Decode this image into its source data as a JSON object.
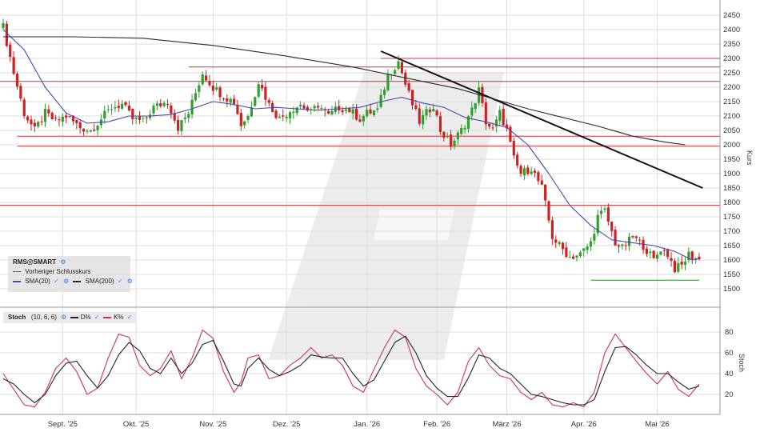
{
  "chart_data": [
    {
      "type": "candlestick",
      "symbol": "RMS@SMART",
      "ylabel": "Kurs",
      "y_ticks": [
        1500,
        1550,
        1600,
        1650,
        1700,
        1750,
        1800,
        1850,
        1900,
        1950,
        2000,
        2050,
        2100,
        2150,
        2200,
        2250,
        2300,
        2350,
        2400,
        2450
      ],
      "ylim": [
        1460,
        2460
      ],
      "x_labels": [
        "Sept. '25",
        "Okt. '25",
        "Nov. '25",
        "Dez. '25",
        "Jan. '26",
        "Feb. '26",
        "März '26",
        "Apr. '26",
        "Mai '26"
      ],
      "x_label_index": [
        17,
        38,
        60,
        81,
        104,
        124,
        144,
        166,
        187
      ],
      "x_count": 200,
      "grid": true,
      "legend": {
        "symbol_label": "RMS@SMART",
        "prev_close_label": "Vorheriger Schlusskurs",
        "sma20_label": "SMA(20)",
        "sma200_label": "SMA(200)",
        "placement": "bottom-left"
      },
      "horizontal_levels": [
        {
          "value": 2300,
          "color": "#cc3333"
        },
        {
          "value": 2270,
          "color": "#cc3333"
        },
        {
          "value": 2220,
          "color": "#cc3333"
        },
        {
          "value": 2030,
          "color": "#cc3333"
        },
        {
          "value": 1995,
          "color": "#cc3333"
        },
        {
          "value": 1790,
          "color": "#cc3333"
        },
        {
          "value": 1530,
          "color": "#2e8b2e"
        }
      ],
      "trendline": {
        "from": [
          108,
          2325
        ],
        "to": [
          200,
          1850
        ]
      },
      "keypoints": [
        [
          0,
          2410
        ],
        [
          3,
          2250
        ],
        [
          6,
          2110
        ],
        [
          9,
          2050
        ],
        [
          12,
          2110
        ],
        [
          15,
          2080
        ],
        [
          18,
          2100
        ],
        [
          22,
          2060
        ],
        [
          25,
          2050
        ],
        [
          28,
          2090
        ],
        [
          31,
          2130
        ],
        [
          34,
          2140
        ],
        [
          37,
          2090
        ],
        [
          40,
          2080
        ],
        [
          43,
          2130
        ],
        [
          47,
          2150
        ],
        [
          50,
          2060
        ],
        [
          53,
          2110
        ],
        [
          57,
          2250
        ],
        [
          60,
          2200
        ],
        [
          63,
          2170
        ],
        [
          66,
          2150
        ],
        [
          68,
          2070
        ],
        [
          70,
          2100
        ],
        [
          73,
          2220
        ],
        [
          76,
          2140
        ],
        [
          79,
          2090
        ],
        [
          82,
          2120
        ],
        [
          85,
          2140
        ],
        [
          88,
          2110
        ],
        [
          90,
          2140
        ],
        [
          93,
          2100
        ],
        [
          96,
          2130
        ],
        [
          99,
          2120
        ],
        [
          102,
          2090
        ],
        [
          104,
          2110
        ],
        [
          107,
          2120
        ],
        [
          110,
          2240
        ],
        [
          113,
          2290
        ],
        [
          115,
          2210
        ],
        [
          117,
          2140
        ],
        [
          119,
          2080
        ],
        [
          121,
          2110
        ],
        [
          123,
          2140
        ],
        [
          125,
          2050
        ],
        [
          128,
          2000
        ],
        [
          131,
          2050
        ],
        [
          134,
          2120
        ],
        [
          136,
          2190
        ],
        [
          138,
          2080
        ],
        [
          140,
          2050
        ],
        [
          142,
          2110
        ],
        [
          144,
          2050
        ],
        [
          146,
          1950
        ],
        [
          148,
          1900
        ],
        [
          151,
          1920
        ],
        [
          154,
          1850
        ],
        [
          157,
          1680
        ],
        [
          159,
          1650
        ],
        [
          162,
          1610
        ],
        [
          165,
          1620
        ],
        [
          168,
          1660
        ],
        [
          170,
          1750
        ],
        [
          172,
          1770
        ],
        [
          175,
          1660
        ],
        [
          177,
          1640
        ],
        [
          180,
          1680
        ],
        [
          183,
          1650
        ],
        [
          186,
          1600
        ],
        [
          188,
          1640
        ],
        [
          190,
          1620
        ],
        [
          192,
          1570
        ],
        [
          194,
          1580
        ],
        [
          196,
          1620
        ],
        [
          199,
          1600
        ]
      ],
      "sma20_keypoints": [
        [
          0,
          2400
        ],
        [
          6,
          2330
        ],
        [
          12,
          2200
        ],
        [
          18,
          2110
        ],
        [
          24,
          2075
        ],
        [
          30,
          2080
        ],
        [
          36,
          2100
        ],
        [
          42,
          2100
        ],
        [
          48,
          2105
        ],
        [
          54,
          2125
        ],
        [
          60,
          2150
        ],
        [
          66,
          2140
        ],
        [
          72,
          2125
        ],
        [
          78,
          2130
        ],
        [
          84,
          2125
        ],
        [
          90,
          2120
        ],
        [
          96,
          2125
        ],
        [
          102,
          2130
        ],
        [
          108,
          2150
        ],
        [
          114,
          2165
        ],
        [
          120,
          2145
        ],
        [
          126,
          2130
        ],
        [
          132,
          2095
        ],
        [
          138,
          2080
        ],
        [
          144,
          2060
        ],
        [
          150,
          2000
        ],
        [
          156,
          1900
        ],
        [
          162,
          1790
        ],
        [
          168,
          1720
        ],
        [
          174,
          1670
        ],
        [
          180,
          1660
        ],
        [
          186,
          1650
        ],
        [
          192,
          1630
        ],
        [
          197,
          1600
        ],
        [
          199,
          1605
        ]
      ],
      "sma200_keypoints": [
        [
          0,
          2375
        ],
        [
          20,
          2375
        ],
        [
          40,
          2370
        ],
        [
          60,
          2345
        ],
        [
          80,
          2310
        ],
        [
          100,
          2270
        ],
        [
          120,
          2220
        ],
        [
          130,
          2195
        ],
        [
          140,
          2160
        ],
        [
          150,
          2125
        ],
        [
          160,
          2095
        ],
        [
          170,
          2065
        ],
        [
          180,
          2030
        ],
        [
          189,
          2010
        ],
        [
          195,
          2000
        ]
      ]
    },
    {
      "type": "line",
      "name": "Stoch",
      "params": "(10, 6, 6)",
      "ylabel": "Stoch",
      "y_ticks": [
        20,
        40,
        60,
        80
      ],
      "ylim": [
        0,
        95
      ],
      "grid": true,
      "series": [
        {
          "name": "D%",
          "color": "#222222",
          "keypoints": [
            [
              0,
              35
            ],
            [
              3,
              30
            ],
            [
              6,
              20
            ],
            [
              9,
              12
            ],
            [
              12,
              20
            ],
            [
              15,
              38
            ],
            [
              18,
              50
            ],
            [
              21,
              52
            ],
            [
              24,
              38
            ],
            [
              27,
              26
            ],
            [
              30,
              38
            ],
            [
              33,
              58
            ],
            [
              36,
              70
            ],
            [
              39,
              62
            ],
            [
              42,
              45
            ],
            [
              45,
              40
            ],
            [
              48,
              55
            ],
            [
              51,
              40
            ],
            [
              54,
              50
            ],
            [
              57,
              68
            ],
            [
              60,
              72
            ],
            [
              63,
              52
            ],
            [
              66,
              30
            ],
            [
              68,
              28
            ],
            [
              70,
              45
            ],
            [
              73,
              55
            ],
            [
              76,
              44
            ],
            [
              79,
              38
            ],
            [
              82,
              42
            ],
            [
              85,
              48
            ],
            [
              88,
              58
            ],
            [
              91,
              56
            ],
            [
              94,
              55
            ],
            [
              97,
              55
            ],
            [
              100,
              40
            ],
            [
              103,
              28
            ],
            [
              106,
              34
            ],
            [
              109,
              52
            ],
            [
              112,
              70
            ],
            [
              115,
              76
            ],
            [
              118,
              60
            ],
            [
              121,
              38
            ],
            [
              124,
              26
            ],
            [
              127,
              18
            ],
            [
              130,
              18
            ],
            [
              133,
              36
            ],
            [
              136,
              58
            ],
            [
              139,
              55
            ],
            [
              142,
              45
            ],
            [
              145,
              40
            ],
            [
              148,
              30
            ],
            [
              151,
              20
            ],
            [
              154,
              18
            ],
            [
              157,
              15
            ],
            [
              160,
              12
            ],
            [
              163,
              10
            ],
            [
              166,
              10
            ],
            [
              169,
              15
            ],
            [
              172,
              42
            ],
            [
              175,
              65
            ],
            [
              178,
              66
            ],
            [
              181,
              58
            ],
            [
              184,
              48
            ],
            [
              187,
              40
            ],
            [
              190,
              40
            ],
            [
              193,
              32
            ],
            [
              196,
              25
            ],
            [
              199,
              28
            ]
          ]
        },
        {
          "name": "K%",
          "color": "#cc3355",
          "keypoints": [
            [
              0,
              40
            ],
            [
              3,
              25
            ],
            [
              6,
              10
            ],
            [
              9,
              8
            ],
            [
              12,
              22
            ],
            [
              15,
              45
            ],
            [
              18,
              55
            ],
            [
              21,
              42
            ],
            [
              24,
              20
            ],
            [
              27,
              26
            ],
            [
              30,
              55
            ],
            [
              33,
              78
            ],
            [
              36,
              75
            ],
            [
              39,
              48
            ],
            [
              42,
              38
            ],
            [
              45,
              45
            ],
            [
              48,
              62
            ],
            [
              51,
              35
            ],
            [
              54,
              55
            ],
            [
              57,
              82
            ],
            [
              60,
              74
            ],
            [
              63,
              42
            ],
            [
              66,
              22
            ],
            [
              68,
              32
            ],
            [
              70,
              55
            ],
            [
              73,
              58
            ],
            [
              76,
              35
            ],
            [
              79,
              38
            ],
            [
              82,
              48
            ],
            [
              85,
              55
            ],
            [
              88,
              65
            ],
            [
              91,
              55
            ],
            [
              94,
              58
            ],
            [
              97,
              48
            ],
            [
              100,
              28
            ],
            [
              103,
              22
            ],
            [
              106,
              44
            ],
            [
              109,
              65
            ],
            [
              112,
              82
            ],
            [
              115,
              75
            ],
            [
              118,
              45
            ],
            [
              121,
              28
            ],
            [
              124,
              20
            ],
            [
              127,
              10
            ],
            [
              130,
              22
            ],
            [
              133,
              52
            ],
            [
              136,
              65
            ],
            [
              139,
              48
            ],
            [
              142,
              38
            ],
            [
              145,
              35
            ],
            [
              148,
              22
            ],
            [
              151,
              15
            ],
            [
              154,
              22
            ],
            [
              157,
              10
            ],
            [
              160,
              8
            ],
            [
              163,
              12
            ],
            [
              166,
              8
            ],
            [
              169,
              22
            ],
            [
              172,
              60
            ],
            [
              175,
              78
            ],
            [
              178,
              65
            ],
            [
              181,
              52
            ],
            [
              184,
              40
            ],
            [
              187,
              30
            ],
            [
              190,
              42
            ],
            [
              193,
              25
            ],
            [
              196,
              18
            ],
            [
              199,
              30
            ]
          ]
        }
      ]
    }
  ],
  "colors": {
    "up": "#2ea02e",
    "down": "#cc2222",
    "sma20": "#4a4ab0",
    "sma200": "#2a2a2a",
    "grid": "#dddddd"
  }
}
